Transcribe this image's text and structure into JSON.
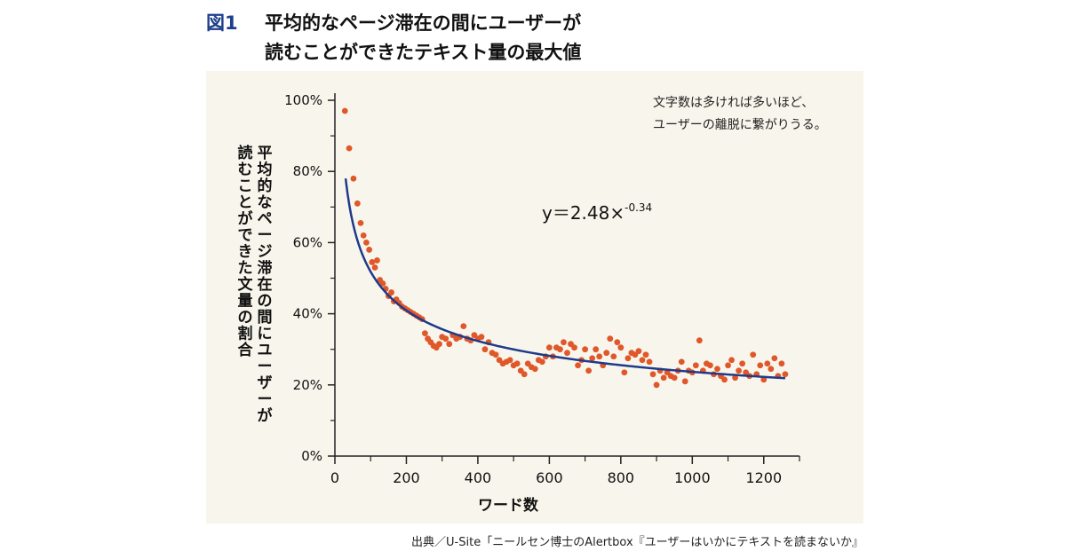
{
  "figure": {
    "label": "図1",
    "title_lines": [
      "平均的なページ滞在の間にユーザーが",
      "読むことができたテキスト量の最大値"
    ]
  },
  "source": "出典／U-Site「ニールセン博士のAlertbox『ユーザーはいかにテキストを読まないか』",
  "colors": {
    "panel_bg": "#f8f6ec",
    "point": "#e0572a",
    "curve": "#1f3a8a",
    "axis": "#222222",
    "title_accent": "#1e3f8c"
  },
  "chart_data": {
    "type": "scatter",
    "xlabel": "ワード数",
    "ylabel": "平均的なページ滞在の間にユーザーが読むことができた文量の割合",
    "ylabel_lines": [
      "平均的なページ滞在の間にユーザーが",
      "読むことができた文量の割合"
    ],
    "xlim": [
      0,
      1300
    ],
    "ylim": [
      0,
      100
    ],
    "x_ticks": [
      0,
      200,
      400,
      600,
      800,
      1000,
      1200
    ],
    "y_ticks": [
      0,
      20,
      40,
      60,
      80,
      100
    ],
    "y_tick_labels": [
      "0%",
      "20%",
      "40%",
      "60%",
      "80%",
      "100%"
    ],
    "annotation": [
      "文字数は多ければ多いほど、",
      "ユーザーの離脱に繋がりうる。"
    ],
    "fit": {
      "label_base": "y＝2.48×",
      "label_exp": "-0.34",
      "a": 2.48,
      "b": -0.34,
      "x_range": [
        30,
        1260
      ]
    },
    "points": [
      [
        28,
        97
      ],
      [
        40,
        86.5
      ],
      [
        52,
        78
      ],
      [
        63,
        71
      ],
      [
        72,
        65.5
      ],
      [
        80,
        62
      ],
      [
        88,
        60
      ],
      [
        96,
        58
      ],
      [
        104,
        54.5
      ],
      [
        112,
        53
      ],
      [
        118,
        55
      ],
      [
        126,
        49.5
      ],
      [
        134,
        48.5
      ],
      [
        142,
        47
      ],
      [
        150,
        45
      ],
      [
        158,
        46
      ],
      [
        165,
        43.5
      ],
      [
        172,
        44
      ],
      [
        180,
        43
      ],
      [
        188,
        42
      ],
      [
        196,
        41.5
      ],
      [
        204,
        41
      ],
      [
        212,
        40.5
      ],
      [
        220,
        40
      ],
      [
        228,
        39.5
      ],
      [
        236,
        39
      ],
      [
        244,
        38.5
      ],
      [
        252,
        34.5
      ],
      [
        260,
        33
      ],
      [
        268,
        32
      ],
      [
        276,
        31
      ],
      [
        284,
        30.5
      ],
      [
        292,
        31.5
      ],
      [
        300,
        33.5
      ],
      [
        310,
        33
      ],
      [
        320,
        31.5
      ],
      [
        330,
        34
      ],
      [
        340,
        33
      ],
      [
        350,
        33.5
      ],
      [
        360,
        36.5
      ],
      [
        370,
        33
      ],
      [
        380,
        32.5
      ],
      [
        390,
        34
      ],
      [
        400,
        33
      ],
      [
        410,
        33.5
      ],
      [
        420,
        30
      ],
      [
        430,
        32
      ],
      [
        440,
        29
      ],
      [
        450,
        28.5
      ],
      [
        460,
        27
      ],
      [
        470,
        26
      ],
      [
        480,
        26.5
      ],
      [
        490,
        27
      ],
      [
        500,
        25.5
      ],
      [
        510,
        26
      ],
      [
        520,
        24
      ],
      [
        530,
        23
      ],
      [
        540,
        26
      ],
      [
        550,
        25
      ],
      [
        560,
        24.5
      ],
      [
        570,
        27
      ],
      [
        580,
        26.5
      ],
      [
        590,
        28
      ],
      [
        600,
        30.5
      ],
      [
        610,
        28
      ],
      [
        620,
        30.5
      ],
      [
        630,
        30
      ],
      [
        640,
        32
      ],
      [
        650,
        29
      ],
      [
        660,
        31.5
      ],
      [
        670,
        30.5
      ],
      [
        680,
        25.5
      ],
      [
        690,
        27
      ],
      [
        700,
        30
      ],
      [
        710,
        24
      ],
      [
        720,
        27.5
      ],
      [
        730,
        30
      ],
      [
        740,
        28
      ],
      [
        750,
        25.5
      ],
      [
        760,
        29
      ],
      [
        770,
        33
      ],
      [
        780,
        28
      ],
      [
        790,
        32
      ],
      [
        800,
        30.5
      ],
      [
        810,
        23.5
      ],
      [
        820,
        27.5
      ],
      [
        830,
        29
      ],
      [
        840,
        28.5
      ],
      [
        850,
        29.5
      ],
      [
        860,
        27
      ],
      [
        870,
        28.5
      ],
      [
        880,
        26.5
      ],
      [
        890,
        23
      ],
      [
        900,
        20
      ],
      [
        910,
        24
      ],
      [
        920,
        22
      ],
      [
        930,
        23.5
      ],
      [
        940,
        22.5
      ],
      [
        950,
        22
      ],
      [
        960,
        24
      ],
      [
        970,
        26.5
      ],
      [
        980,
        21
      ],
      [
        990,
        24
      ],
      [
        1000,
        23.5
      ],
      [
        1010,
        25.5
      ],
      [
        1020,
        32.5
      ],
      [
        1030,
        24
      ],
      [
        1040,
        26
      ],
      [
        1050,
        25.5
      ],
      [
        1060,
        23
      ],
      [
        1070,
        24.5
      ],
      [
        1080,
        22.5
      ],
      [
        1090,
        21.5
      ],
      [
        1100,
        25.5
      ],
      [
        1110,
        27
      ],
      [
        1120,
        22
      ],
      [
        1130,
        24
      ],
      [
        1140,
        26
      ],
      [
        1150,
        23.5
      ],
      [
        1160,
        22.5
      ],
      [
        1170,
        28.5
      ],
      [
        1180,
        23
      ],
      [
        1190,
        25.5
      ],
      [
        1200,
        21.5
      ],
      [
        1210,
        26
      ],
      [
        1220,
        24.5
      ],
      [
        1230,
        27.5
      ],
      [
        1240,
        22.5
      ],
      [
        1250,
        26
      ],
      [
        1260,
        23
      ]
    ]
  }
}
